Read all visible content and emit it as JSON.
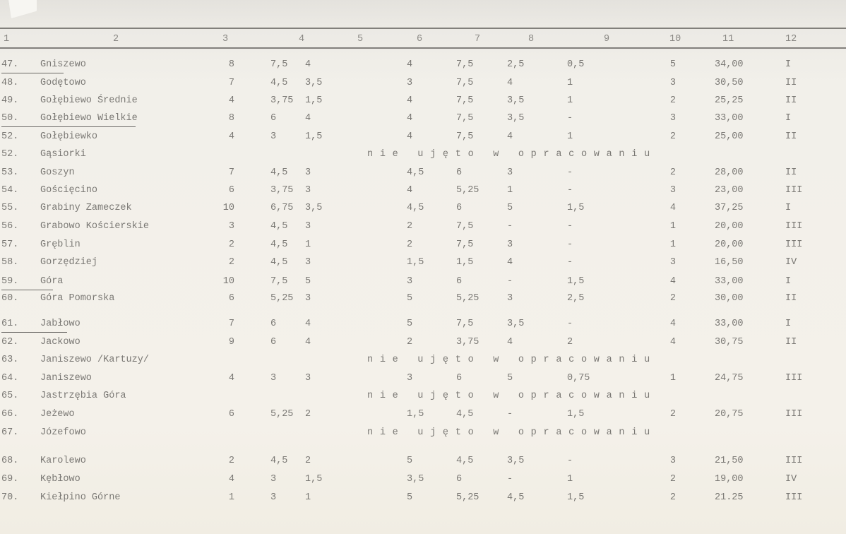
{
  "header": [
    "1",
    "2",
    "3",
    "4",
    "5",
    "6",
    "7",
    "8",
    "9",
    "10",
    "11",
    "12"
  ],
  "rows": [
    {
      "num": "47.",
      "name": "Gniszewo",
      "underline": true,
      "cells": [
        "8",
        "7,5",
        "4",
        "4",
        "7,5",
        "2,5",
        "0,5",
        "5",
        "34,00",
        "I"
      ]
    },
    {
      "num": "48.",
      "name": "Godętowo",
      "cells": [
        "7",
        "4,5",
        "3,5",
        "3",
        "7,5",
        "4",
        "1",
        "3",
        "30,50",
        "II"
      ]
    },
    {
      "num": "49.",
      "name": "Gołębiewo Średnie",
      "cells": [
        "4",
        "3,75",
        "1,5",
        "4",
        "7,5",
        "3,5",
        "1",
        "2",
        "25,25",
        "II"
      ]
    },
    {
      "num": "50.",
      "name": "Gołębiewo Wielkie",
      "underline": true,
      "cells": [
        "8",
        "6",
        "4",
        "4",
        "7,5",
        "3,5",
        "-",
        "3",
        "33,00",
        "I"
      ]
    },
    {
      "num": "52.",
      "name": "Gołębiewko",
      "cells": [
        "4",
        "3",
        "1,5",
        "4",
        "7,5",
        "4",
        "1",
        "2",
        "25,00",
        "II"
      ]
    },
    {
      "num": "52.",
      "name": "Gąsiorki",
      "note": "nie ujęto w opracowaniu"
    },
    {
      "num": "53.",
      "name": "Goszyn",
      "cells": [
        "7",
        "4,5",
        "3",
        "4,5",
        "6",
        "3",
        "-",
        "2",
        "28,00",
        "II"
      ]
    },
    {
      "num": "54.",
      "name": "Gościęcino",
      "cells": [
        "6",
        "3,75",
        "3",
        "4",
        "5,25",
        "1",
        "-",
        "3",
        "23,00",
        "III"
      ]
    },
    {
      "num": "55.",
      "name": "Grabiny Zameczek",
      "cells": [
        "10",
        "6,75",
        "3,5",
        "4,5",
        "6",
        "5",
        "1,5",
        "4",
        "37,25",
        "I"
      ]
    },
    {
      "num": "56.",
      "name": "Grabowo Kościerskie",
      "cells": [
        "3",
        "4,5",
        "3",
        "2",
        "7,5",
        "-",
        "-",
        "1",
        "20,00",
        "III"
      ]
    },
    {
      "num": "57.",
      "name": "Gręblin",
      "cells": [
        "2",
        "4,5",
        "1",
        "2",
        "7,5",
        "3",
        "-",
        "1",
        "20,00",
        "III"
      ]
    },
    {
      "num": "58.",
      "name": "Gorzędziej",
      "cells": [
        "2",
        "4,5",
        "3",
        "1,5",
        "1,5",
        "4",
        "-",
        "3",
        "16,50",
        "IV"
      ]
    },
    {
      "num": "59.",
      "name": "Góra",
      "underline": true,
      "cells": [
        "10",
        "7,5",
        "5",
        "3",
        "6",
        "-",
        "1,5",
        "4",
        "33,00",
        "I"
      ]
    },
    {
      "num": "60.",
      "name": "Góra Pomorska",
      "cells": [
        "6",
        "5,25",
        "3",
        "5",
        "5,25",
        "3",
        "2,5",
        "2",
        "30,00",
        "II"
      ]
    },
    {
      "num": "61.",
      "name": "Jabłowo",
      "underline": true,
      "cells": [
        "7",
        "6",
        "4",
        "5",
        "7,5",
        "3,5",
        "-",
        "4",
        "33,00",
        "I"
      ]
    },
    {
      "num": "62.",
      "name": "Jackowo",
      "cells": [
        "9",
        "6",
        "4",
        "2",
        "3,75",
        "4",
        "2",
        "4",
        "30,75",
        "II"
      ]
    },
    {
      "num": "63.",
      "name": "Janiszewo /Kartuzy/",
      "note": "nie ujęto w opracowaniu"
    },
    {
      "num": "64.",
      "name": "Janiszewo",
      "cells": [
        "4",
        "3",
        "3",
        "3",
        "6",
        "5",
        "0,75",
        "1",
        "24,75",
        "III"
      ]
    },
    {
      "num": "65.",
      "name": "Jastrzębia Góra",
      "note": "nie ujęto w opracowaniu"
    },
    {
      "num": "66.",
      "name": "Jeżewo",
      "cells": [
        "6",
        "5,25",
        "2",
        "1,5",
        "4,5",
        "-",
        "1,5",
        "2",
        "20,75",
        "III"
      ]
    },
    {
      "num": "67.",
      "name": "Józefowo",
      "note": "nie ujęto w opracowaniu"
    },
    {
      "num": "68.",
      "name": "Karolewo",
      "cells": [
        "2",
        "4,5",
        "2",
        "5",
        "4,5",
        "3,5",
        "-",
        "3",
        "21,50",
        "III"
      ]
    },
    {
      "num": "69.",
      "name": "Kębłowo",
      "cells": [
        "4",
        "3",
        "1,5",
        "3,5",
        "6",
        "-",
        "1",
        "2",
        "19,00",
        "IV"
      ]
    },
    {
      "num": "70.",
      "name": "Kiełpino Górne",
      "cells": [
        "1",
        "3",
        "1",
        "5",
        "5,25",
        "4,5",
        "1,5",
        "2",
        "21.25",
        "III"
      ]
    }
  ]
}
